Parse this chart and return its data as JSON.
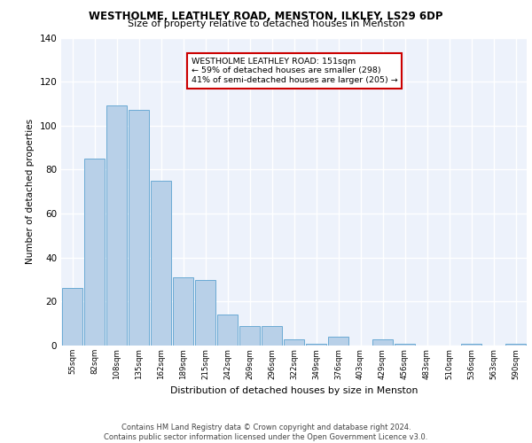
{
  "title": "WESTHOLME, LEATHLEY ROAD, MENSTON, ILKLEY, LS29 6DP",
  "subtitle": "Size of property relative to detached houses in Menston",
  "xlabel": "Distribution of detached houses by size in Menston",
  "ylabel": "Number of detached properties",
  "categories": [
    "55sqm",
    "82sqm",
    "108sqm",
    "135sqm",
    "162sqm",
    "189sqm",
    "215sqm",
    "242sqm",
    "269sqm",
    "296sqm",
    "322sqm",
    "349sqm",
    "376sqm",
    "403sqm",
    "429sqm",
    "456sqm",
    "483sqm",
    "510sqm",
    "536sqm",
    "563sqm",
    "590sqm"
  ],
  "values": [
    26,
    85,
    109,
    107,
    75,
    31,
    30,
    14,
    9,
    9,
    3,
    1,
    4,
    0,
    3,
    1,
    0,
    0,
    1,
    0,
    1
  ],
  "bar_color": "#b8d0e8",
  "bar_edge_color": "#6aaad4",
  "annotation_box_text": "WESTHOLME LEATHLEY ROAD: 151sqm\n← 59% of detached houses are smaller (298)\n41% of semi-detached houses are larger (205) →",
  "annotation_box_color": "#ffffff",
  "annotation_box_edgecolor": "#cc0000",
  "property_bin_index": 3,
  "background_color": "#edf2fb",
  "grid_color": "#ffffff",
  "footer_text": "Contains HM Land Registry data © Crown copyright and database right 2024.\nContains public sector information licensed under the Open Government Licence v3.0.",
  "ylim": [
    0,
    140
  ],
  "yticks": [
    0,
    20,
    40,
    60,
    80,
    100,
    120,
    140
  ]
}
